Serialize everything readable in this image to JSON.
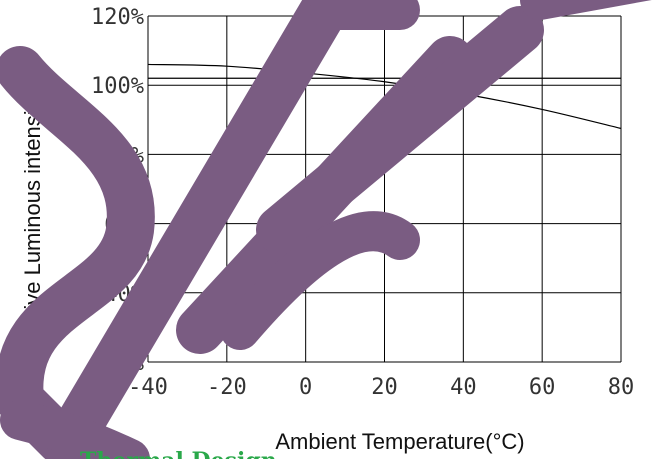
{
  "chart_data": {
    "type": "line",
    "title": "",
    "xlabel": "Ambient Temperature(°C)",
    "ylabel": "Relative Luminous intensity(%)",
    "xlim": [
      -40,
      80
    ],
    "ylim": [
      20,
      120
    ],
    "xticks": [
      "-40",
      "-20",
      "0",
      "20",
      "40",
      "60",
      "80"
    ],
    "yticks": [
      "20%",
      "40%",
      "60%",
      "80%",
      "100%",
      "120%"
    ],
    "grid": true,
    "series": [
      {
        "x": [
          -40,
          -20,
          0,
          20,
          40,
          60,
          80
        ],
        "values": [
          106,
          105.5,
          103.5,
          101,
          97.5,
          93,
          87.5
        ],
        "color": "#000000"
      },
      {
        "x": [
          -40,
          80
        ],
        "values": [
          102,
          102
        ],
        "color": "#000000"
      }
    ]
  },
  "watermark": {
    "text": "SAMPLE",
    "color": "#7a5c82"
  },
  "footer": {
    "text": "Thermal Design"
  }
}
